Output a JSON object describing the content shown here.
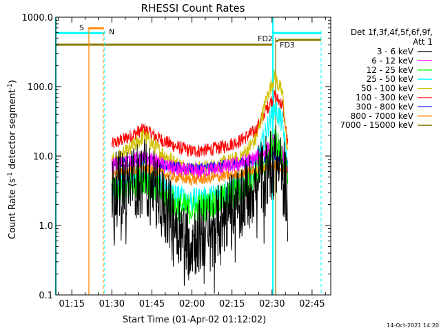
{
  "chart_data": {
    "type": "line",
    "title": "RHESSI Count Rates",
    "xlabel": "Start Time (01-Apr-02 01:12:02)",
    "ylabel_main": "Count Rate (s",
    "ylabel_exp1": "-1",
    "ylabel_mid": " detector segment",
    "ylabel_exp2": "-1",
    "ylabel_close": ")",
    "y_scale": "log",
    "ylim": [
      0.1,
      1000
    ],
    "xlim": [
      "01:09",
      "02:52"
    ],
    "x_ticks": [
      {
        "t": "01:15",
        "label": "01:15"
      },
      {
        "t": "01:30",
        "label": "01:30"
      },
      {
        "t": "01:45",
        "label": "01:45"
      },
      {
        "t": "02:00",
        "label": "02:00"
      },
      {
        "t": "02:15",
        "label": "02:15"
      },
      {
        "t": "02:30",
        "label": "02:30"
      },
      {
        "t": "02:45",
        "label": "02:45"
      }
    ],
    "y_ticks": [
      {
        "v": 0.1,
        "label": "0.1"
      },
      {
        "v": 1,
        "label": "1.0"
      },
      {
        "v": 10,
        "label": "10.0"
      },
      {
        "v": 100,
        "label": "100.0"
      },
      {
        "v": 1000,
        "label": "1000.0"
      }
    ],
    "legend": {
      "position": "right",
      "header1": "Det 1f,3f,4f,5f,6f,9f,",
      "header2": "Att 1"
    },
    "series": [
      {
        "name": "3 - 6 keV",
        "color": "#000000",
        "x": [
          "01:30",
          "01:36",
          "01:42",
          "01:48",
          "01:54",
          "02:00",
          "02:06",
          "02:12",
          "02:18",
          "02:24",
          "02:28",
          "02:31",
          "02:34",
          "02:36"
        ],
        "y": [
          3.6,
          4.2,
          5.8,
          3.0,
          1.2,
          0.7,
          0.9,
          1.5,
          2.6,
          4.5,
          7.0,
          10.0,
          6.0,
          3.5
        ]
      },
      {
        "name": "6 - 12 keV",
        "color": "#ff00ff",
        "x": [
          "01:30",
          "01:36",
          "01:42",
          "01:48",
          "01:54",
          "02:00",
          "02:06",
          "02:12",
          "02:18",
          "02:24",
          "02:28",
          "02:31",
          "02:34",
          "02:36"
        ],
        "y": [
          7.5,
          8.5,
          9.5,
          8.0,
          6.5,
          6.0,
          6.2,
          7.0,
          8.0,
          9.5,
          12.0,
          18.0,
          11.0,
          7.0
        ]
      },
      {
        "name": "12 - 25 keV",
        "color": "#00ff00",
        "x": [
          "01:30",
          "01:36",
          "01:42",
          "01:48",
          "01:54",
          "02:00",
          "02:06",
          "02:12",
          "02:18",
          "02:24",
          "02:28",
          "02:31",
          "02:34",
          "02:36"
        ],
        "y": [
          3.0,
          3.8,
          5.0,
          3.2,
          2.0,
          1.8,
          2.0,
          2.6,
          3.4,
          5.5,
          9.0,
          19.0,
          10.0,
          5.0
        ]
      },
      {
        "name": "25 - 50 keV",
        "color": "#00ffff",
        "x": [
          "01:30",
          "01:36",
          "01:42",
          "01:48",
          "01:54",
          "02:00",
          "02:06",
          "02:12",
          "02:18",
          "02:24",
          "02:28",
          "02:31",
          "02:34",
          "02:36"
        ],
        "y": [
          4.0,
          4.8,
          6.0,
          4.0,
          2.8,
          2.4,
          2.6,
          3.2,
          4.0,
          8.0,
          25.0,
          52.0,
          30.0,
          6.0
        ]
      },
      {
        "name": "50 - 100 keV",
        "color": "#d0c000",
        "x": [
          "01:30",
          "01:36",
          "01:42",
          "01:48",
          "01:54",
          "02:00",
          "02:06",
          "02:12",
          "02:18",
          "02:24",
          "02:28",
          "02:31",
          "02:34",
          "02:36"
        ],
        "y": [
          8.5,
          12.0,
          20.0,
          12.0,
          8.0,
          6.5,
          7.0,
          8.0,
          9.5,
          18.0,
          70.0,
          145.0,
          80.0,
          9.0
        ]
      },
      {
        "name": "100 - 300 keV",
        "color": "#ff0000",
        "x": [
          "01:30",
          "01:36",
          "01:42",
          "01:48",
          "01:54",
          "02:00",
          "02:06",
          "02:12",
          "02:18",
          "02:24",
          "02:28",
          "02:31",
          "02:34",
          "02:36"
        ],
        "y": [
          15.0,
          19.0,
          25.0,
          18.0,
          14.0,
          12.0,
          12.5,
          14.0,
          17.0,
          24.0,
          50.0,
          75.0,
          55.0,
          14.0
        ]
      },
      {
        "name": "300 - 800 keV",
        "color": "#0000ff",
        "x": [
          "01:30",
          "01:36",
          "01:42",
          "01:48",
          "01:54",
          "02:00",
          "02:06",
          "02:12",
          "02:18",
          "02:24",
          "02:28",
          "02:31",
          "02:34",
          "02:36"
        ],
        "y": [
          8.0,
          8.5,
          9.5,
          8.0,
          7.0,
          6.8,
          7.0,
          7.5,
          8.0,
          9.0,
          9.5,
          10.5,
          9.5,
          8.0
        ]
      },
      {
        "name": "800 - 7000 keV",
        "color": "#ff8800",
        "x": [
          "01:30",
          "01:36",
          "01:42",
          "01:48",
          "01:54",
          "02:00",
          "02:06",
          "02:12",
          "02:18",
          "02:24",
          "02:28",
          "02:31",
          "02:34",
          "02:36"
        ],
        "y": [
          5.5,
          6.0,
          6.8,
          5.8,
          5.0,
          4.6,
          4.8,
          5.2,
          5.6,
          6.3,
          7.0,
          7.5,
          7.0,
          6.0
        ]
      },
      {
        "name": "7000 - 15000 keV",
        "color": "#8a7a00",
        "x": [],
        "y": []
      }
    ],
    "annotations": [
      {
        "label": "S",
        "color": "#ff8800"
      },
      {
        "label": "N",
        "color": "#00ffff"
      },
      {
        "label": "FD2",
        "color": "#8a7a00"
      },
      {
        "label": "FD3",
        "color": "#8a7a00"
      }
    ],
    "footer": "14-Oct-2021 14:20"
  }
}
